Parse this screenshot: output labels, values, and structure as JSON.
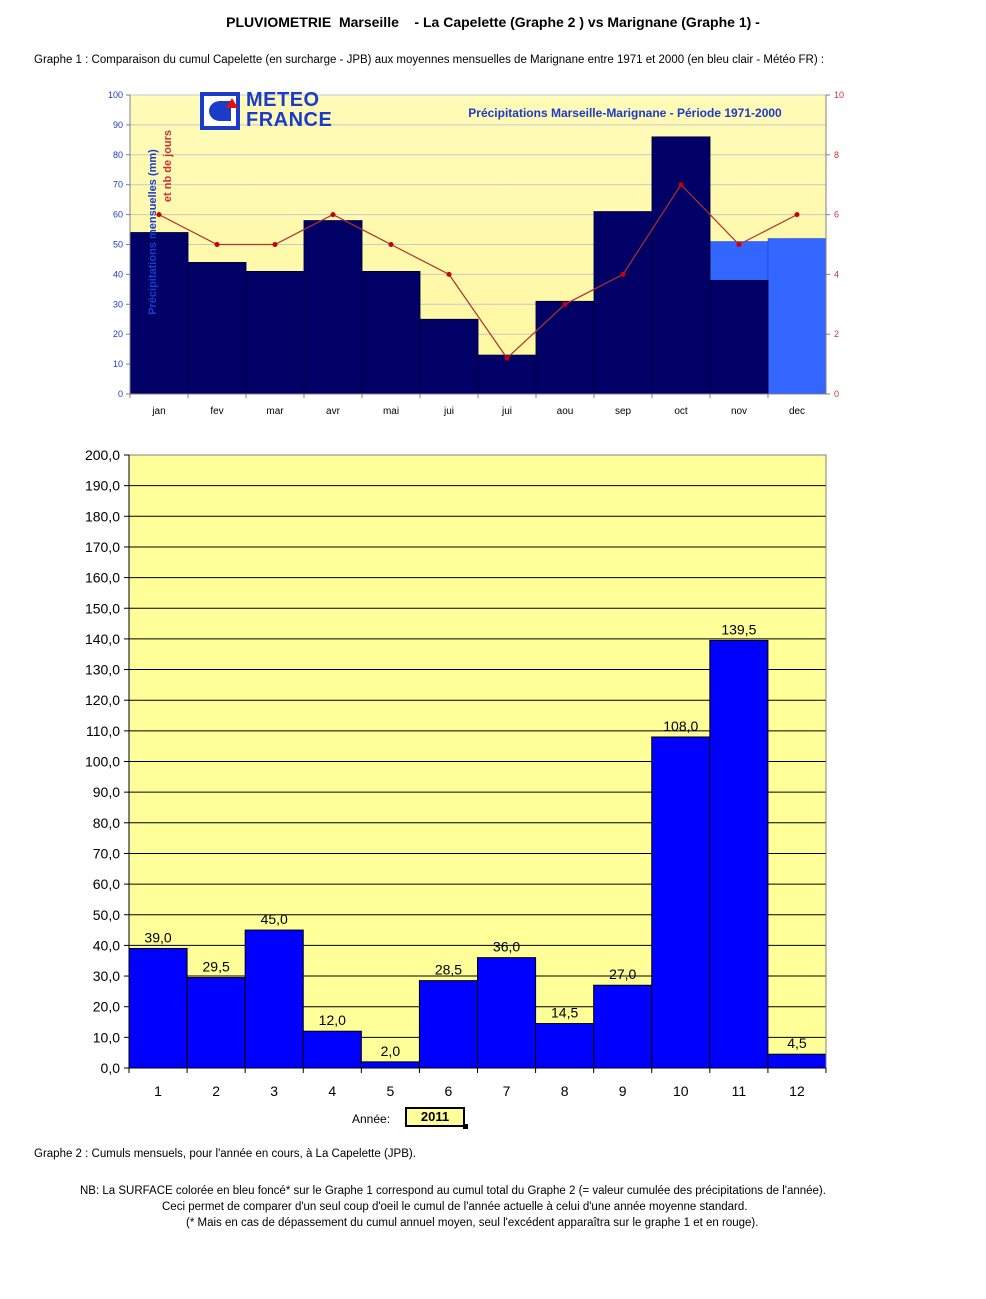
{
  "page": {
    "title": "PLUVIOMETRIE  Marseille    - La Capelette (Graphe 2 ) vs Marignane (Graphe 1) -",
    "caption_graphe1": "Graphe 1 : Comparaison du cumul Capelette (en surcharge - JPB) aux moyennes mensuelles de Marignane entre 1971 et 2000 (en bleu clair - Météo FR) :",
    "caption_graphe2": "Graphe 2 : Cumuls mensuels, pour l'année en cours, à La Capelette (JPB).",
    "nb_lines": [
      "NB: La SURFACE colorée en bleu foncé* sur le Graphe 1 correspond au cumul total du Graphe 2 (= valeur cumulée des précipitations de l'année).",
      "Ceci permet de comparer d'un seul coup d'oeil le cumul de l'année actuelle à celui d'une année moyenne standard.",
      "(* Mais en cas de dépassement du cumul annuel moyen, seul l'excédent apparaîtra sur le graphe 1 et en rouge)."
    ],
    "year_label": "Année:",
    "year_value": "2011",
    "logo_line1": "METEO",
    "logo_line2": "FRANCE"
  },
  "colors": {
    "plot_bg_top": "#fffbb0",
    "plot_bg_bottom": "#fff9a0",
    "dark_bar": "#000066",
    "light_bar": "#3366ff",
    "bar2": "#0000ff",
    "days_line": "#cc0000",
    "days_label": "#cc3333",
    "axis_blue": "#1a3cc8",
    "logo_blue": "#1a3cc8"
  },
  "chart_data": [
    {
      "id": "graphe1",
      "type": "bar",
      "title": "Précipitations Marseille-Marignane - Période 1971-2000",
      "ylabel": "Précipitations mensuelles (mm)",
      "ylabel2": "et nb de jours",
      "categories": [
        "jan",
        "fev",
        "mar",
        "avr",
        "mai",
        "jui",
        "jui",
        "aou",
        "sep",
        "oct",
        "nov",
        "dec"
      ],
      "ylim": [
        0,
        100
      ],
      "yticks": [
        "0",
        "10",
        "20",
        "30",
        "40",
        "50",
        "60",
        "70",
        "80",
        "90",
        "100"
      ],
      "y2lim": [
        0,
        10
      ],
      "y2ticks": [
        "0",
        "2",
        "4",
        "6",
        "8",
        "10"
      ],
      "grid": true,
      "series": [
        {
          "kind": "bar-back",
          "values": [
            54,
            44,
            41,
            58,
            41,
            25,
            13,
            31,
            61,
            86,
            51,
            52
          ]
        },
        {
          "kind": "bar-front",
          "values": [
            54,
            44,
            41,
            58,
            41,
            25,
            13,
            31,
            61,
            86,
            38,
            0
          ]
        },
        {
          "kind": "line-y2",
          "values": [
            6,
            5,
            5,
            6,
            5,
            4,
            1.2,
            3,
            4,
            7,
            5,
            6
          ]
        }
      ]
    },
    {
      "id": "graphe2",
      "type": "bar",
      "categories": [
        "1",
        "2",
        "3",
        "4",
        "5",
        "6",
        "7",
        "8",
        "9",
        "10",
        "11",
        "12"
      ],
      "values": [
        39.0,
        29.5,
        45.0,
        12.0,
        2.0,
        28.5,
        36.0,
        14.5,
        27.0,
        108.0,
        139.5,
        4.5
      ],
      "data_labels": [
        "39,0",
        "29,5",
        "45,0",
        "12,0",
        "2,0",
        "28,5",
        "36,0",
        "14,5",
        "27,0",
        "108,0",
        "139,5",
        "4,5"
      ],
      "ylim": [
        0,
        200
      ],
      "yticks": [
        "0,0",
        "10,0",
        "20,0",
        "30,0",
        "40,0",
        "50,0",
        "60,0",
        "70,0",
        "80,0",
        "90,0",
        "100,0",
        "110,0",
        "120,0",
        "130,0",
        "140,0",
        "150,0",
        "160,0",
        "170,0",
        "180,0",
        "190,0",
        "200,0"
      ],
      "grid": true
    }
  ]
}
